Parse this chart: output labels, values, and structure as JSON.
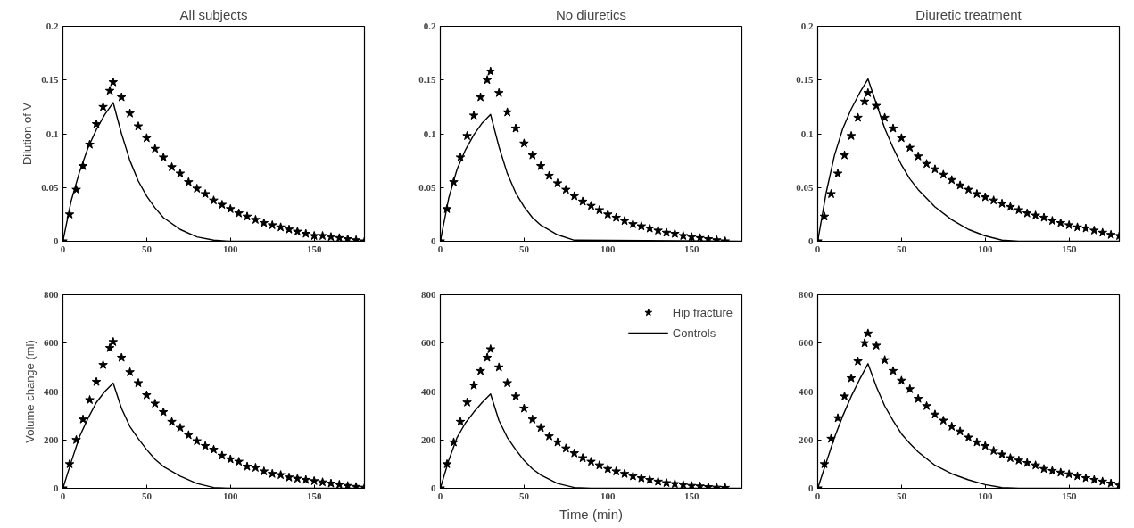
{
  "chart_data": [
    {
      "type": "line",
      "title": "All subjects",
      "ylabel": "Dilution of V",
      "xlim": [
        0,
        180
      ],
      "xticks": [
        0,
        50,
        100,
        150
      ],
      "ylim": [
        0,
        0.2
      ],
      "yticks": [
        0,
        0.05,
        0.1,
        0.15,
        0.2
      ],
      "grid": false,
      "series": [
        {
          "type": "scatter",
          "marker": "star",
          "color": "#000000",
          "x": [
            0,
            4,
            8,
            12,
            16,
            20,
            24,
            28,
            30,
            35,
            40,
            45,
            50,
            55,
            60,
            65,
            70,
            75,
            80,
            85,
            90,
            95,
            100,
            105,
            110,
            115,
            120,
            125,
            130,
            135,
            140,
            145,
            150,
            155,
            160,
            165,
            170,
            175,
            180
          ],
          "values": [
            0,
            0.025,
            0.048,
            0.07,
            0.09,
            0.109,
            0.125,
            0.14,
            0.148,
            0.134,
            0.119,
            0.107,
            0.096,
            0.086,
            0.078,
            0.069,
            0.063,
            0.055,
            0.049,
            0.044,
            0.038,
            0.034,
            0.03,
            0.026,
            0.023,
            0.02,
            0.017,
            0.015,
            0.013,
            0.011,
            0.009,
            0.007,
            0.005,
            0.005,
            0.004,
            0.003,
            0.002,
            0.001,
            0
          ]
        },
        {
          "color": "#000000",
          "x": [
            0,
            5,
            10,
            15,
            20,
            25,
            30,
            35,
            40,
            45,
            50,
            55,
            60,
            70,
            80,
            90,
            100,
            180
          ],
          "values": [
            0,
            0.038,
            0.065,
            0.087,
            0.104,
            0.118,
            0.129,
            0.1,
            0.075,
            0.056,
            0.042,
            0.031,
            0.022,
            0.011,
            0.004,
            0.001,
            0,
            0
          ]
        }
      ]
    },
    {
      "type": "line",
      "title": "No diuretics",
      "xlim": [
        0,
        180
      ],
      "xticks": [
        0,
        50,
        100,
        150
      ],
      "ylim": [
        0,
        0.2
      ],
      "yticks": [
        0,
        0.05,
        0.1,
        0.15,
        0.2
      ],
      "grid": false,
      "series": [
        {
          "type": "scatter",
          "marker": "star",
          "color": "#000000",
          "x": [
            0,
            4,
            8,
            12,
            16,
            20,
            24,
            28,
            30,
            35,
            40,
            45,
            50,
            55,
            60,
            65,
            70,
            75,
            80,
            85,
            90,
            95,
            100,
            105,
            110,
            115,
            120,
            125,
            130,
            135,
            140,
            145,
            150,
            155,
            160,
            165,
            170
          ],
          "values": [
            0,
            0.03,
            0.055,
            0.078,
            0.098,
            0.117,
            0.134,
            0.15,
            0.158,
            0.138,
            0.12,
            0.105,
            0.091,
            0.08,
            0.07,
            0.061,
            0.054,
            0.048,
            0.042,
            0.037,
            0.033,
            0.029,
            0.025,
            0.022,
            0.019,
            0.016,
            0.014,
            0.012,
            0.01,
            0.008,
            0.007,
            0.005,
            0.004,
            0.003,
            0.002,
            0.001,
            0
          ]
        },
        {
          "color": "#000000",
          "x": [
            0,
            5,
            10,
            15,
            20,
            25,
            30,
            35,
            40,
            45,
            50,
            55,
            60,
            70,
            80,
            180
          ],
          "values": [
            0,
            0.04,
            0.067,
            0.085,
            0.099,
            0.11,
            0.118,
            0.088,
            0.063,
            0.045,
            0.032,
            0.022,
            0.015,
            0.006,
            0.001,
            0
          ]
        }
      ]
    },
    {
      "type": "line",
      "title": "Diuretic treatment",
      "xlim": [
        0,
        180
      ],
      "xticks": [
        0,
        50,
        100,
        150
      ],
      "ylim": [
        0,
        0.2
      ],
      "yticks": [
        0,
        0.05,
        0.1,
        0.15,
        0.2
      ],
      "grid": false,
      "series": [
        {
          "type": "scatter",
          "marker": "star",
          "color": "#000000",
          "x": [
            0,
            4,
            8,
            12,
            16,
            20,
            24,
            28,
            30,
            35,
            40,
            45,
            50,
            55,
            60,
            65,
            70,
            75,
            80,
            85,
            90,
            95,
            100,
            105,
            110,
            115,
            120,
            125,
            130,
            135,
            140,
            145,
            150,
            155,
            160,
            165,
            170,
            175,
            180
          ],
          "values": [
            0,
            0.023,
            0.044,
            0.063,
            0.08,
            0.098,
            0.115,
            0.13,
            0.138,
            0.126,
            0.115,
            0.105,
            0.096,
            0.087,
            0.079,
            0.072,
            0.067,
            0.062,
            0.057,
            0.052,
            0.048,
            0.044,
            0.041,
            0.038,
            0.035,
            0.032,
            0.029,
            0.026,
            0.024,
            0.022,
            0.019,
            0.017,
            0.015,
            0.013,
            0.012,
            0.01,
            0.008,
            0.006,
            0.005
          ]
        },
        {
          "color": "#000000",
          "x": [
            0,
            5,
            10,
            15,
            20,
            25,
            30,
            35,
            40,
            45,
            50,
            55,
            60,
            70,
            80,
            90,
            100,
            110,
            120,
            180
          ],
          "values": [
            0,
            0.045,
            0.08,
            0.105,
            0.123,
            0.138,
            0.151,
            0.128,
            0.105,
            0.087,
            0.071,
            0.058,
            0.048,
            0.032,
            0.02,
            0.011,
            0.005,
            0.001,
            0,
            0
          ]
        }
      ]
    },
    {
      "type": "line",
      "ylabel": "Volume change (ml)",
      "xlim": [
        0,
        180
      ],
      "xticks": [
        0,
        50,
        100,
        150
      ],
      "ylim": [
        0,
        800
      ],
      "yticks": [
        0,
        200,
        400,
        600,
        800
      ],
      "grid": false,
      "series": [
        {
          "type": "scatter",
          "marker": "star",
          "color": "#000000",
          "x": [
            0,
            4,
            8,
            12,
            16,
            20,
            24,
            28,
            30,
            35,
            40,
            45,
            50,
            55,
            60,
            65,
            70,
            75,
            80,
            85,
            90,
            95,
            100,
            105,
            110,
            115,
            120,
            125,
            130,
            135,
            140,
            145,
            150,
            155,
            160,
            165,
            170,
            175,
            180
          ],
          "values": [
            0,
            100,
            200,
            285,
            365,
            440,
            510,
            580,
            605,
            540,
            480,
            435,
            385,
            350,
            315,
            275,
            250,
            220,
            195,
            175,
            160,
            135,
            120,
            110,
            90,
            85,
            70,
            60,
            55,
            45,
            40,
            35,
            30,
            25,
            20,
            15,
            10,
            6,
            3
          ]
        },
        {
          "color": "#000000",
          "x": [
            0,
            5,
            10,
            15,
            20,
            25,
            30,
            35,
            40,
            45,
            50,
            55,
            60,
            70,
            80,
            90,
            100,
            180
          ],
          "values": [
            0,
            110,
            215,
            290,
            355,
            400,
            435,
            330,
            255,
            205,
            160,
            120,
            90,
            50,
            20,
            3,
            0,
            0
          ]
        }
      ]
    },
    {
      "type": "line",
      "xlabel": "Time (min)",
      "xlim": [
        0,
        180
      ],
      "xticks": [
        0,
        50,
        100,
        150
      ],
      "ylim": [
        0,
        800
      ],
      "yticks": [
        0,
        200,
        400,
        600,
        800
      ],
      "grid": false,
      "legend": "top right",
      "series": [
        {
          "type": "scatter",
          "marker": "star",
          "name": "Hip fracture",
          "color": "#000000",
          "x": [
            0,
            4,
            8,
            12,
            16,
            20,
            24,
            28,
            30,
            35,
            40,
            45,
            50,
            55,
            60,
            65,
            70,
            75,
            80,
            85,
            90,
            95,
            100,
            105,
            110,
            115,
            120,
            125,
            130,
            135,
            140,
            145,
            150,
            155,
            160,
            165,
            170
          ],
          "values": [
            0,
            100,
            190,
            275,
            355,
            425,
            485,
            540,
            575,
            500,
            435,
            380,
            330,
            285,
            250,
            215,
            190,
            165,
            145,
            125,
            110,
            95,
            80,
            70,
            60,
            50,
            42,
            35,
            28,
            22,
            18,
            14,
            10,
            8,
            5,
            3,
            2
          ]
        },
        {
          "name": "Controls",
          "color": "#000000",
          "x": [
            0,
            5,
            10,
            15,
            20,
            25,
            30,
            35,
            40,
            45,
            50,
            55,
            60,
            70,
            80,
            90,
            180
          ],
          "values": [
            0,
            115,
            210,
            270,
            315,
            355,
            390,
            280,
            210,
            160,
            115,
            80,
            55,
            20,
            3,
            0,
            0
          ]
        }
      ]
    },
    {
      "type": "line",
      "xlim": [
        0,
        180
      ],
      "xticks": [
        0,
        50,
        100,
        150
      ],
      "ylim": [
        0,
        800
      ],
      "yticks": [
        0,
        200,
        400,
        600,
        800
      ],
      "grid": false,
      "series": [
        {
          "type": "scatter",
          "marker": "star",
          "color": "#000000",
          "x": [
            0,
            4,
            8,
            12,
            16,
            20,
            24,
            28,
            30,
            35,
            40,
            45,
            50,
            55,
            60,
            65,
            70,
            75,
            80,
            85,
            90,
            95,
            100,
            105,
            110,
            115,
            120,
            125,
            130,
            135,
            140,
            145,
            150,
            155,
            160,
            165,
            170,
            175,
            180
          ],
          "values": [
            0,
            100,
            205,
            290,
            380,
            455,
            525,
            600,
            640,
            590,
            530,
            485,
            445,
            410,
            370,
            340,
            305,
            280,
            255,
            235,
            210,
            190,
            175,
            155,
            140,
            125,
            115,
            105,
            95,
            80,
            72,
            65,
            58,
            50,
            42,
            35,
            28,
            20,
            12
          ]
        },
        {
          "color": "#000000",
          "x": [
            0,
            5,
            10,
            15,
            20,
            25,
            30,
            35,
            40,
            45,
            50,
            55,
            60,
            70,
            80,
            90,
            100,
            110,
            120,
            180
          ],
          "values": [
            0,
            105,
            210,
            300,
            380,
            450,
            515,
            420,
            340,
            280,
            225,
            185,
            150,
            95,
            60,
            35,
            15,
            3,
            0,
            0
          ]
        }
      ]
    }
  ]
}
